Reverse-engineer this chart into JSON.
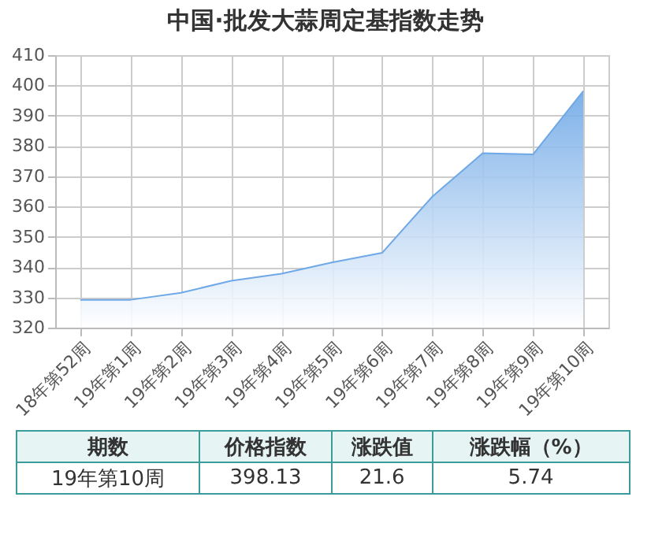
{
  "chart_data": {
    "type": "area",
    "title": "中国·批发大蒜周定基指数走势",
    "categories": [
      "18年第52周",
      "19年第1周",
      "19年第2周",
      "19年第3周",
      "19年第4周",
      "19年第5周",
      "19年第6周",
      "19年第7周",
      "19年第8周",
      "19年第9周",
      "19年第10周"
    ],
    "series": [
      {
        "color": "#6fa8e6",
        "values": [
          329.2,
          329.2,
          331.5,
          335.5,
          337.8,
          341.5,
          344.7,
          363.3,
          377.6,
          377.2,
          398.13
        ]
      }
    ],
    "ylim": [
      320,
      410
    ],
    "yticks": [
      320,
      330,
      340,
      350,
      360,
      370,
      380,
      390,
      400,
      410
    ],
    "grid": true,
    "annotations": [
      "期数",
      "价格指数",
      "涨跌值",
      "涨跌幅（%）",
      "19年第10周",
      "398.13",
      "21.6",
      "5.74"
    ]
  }
}
